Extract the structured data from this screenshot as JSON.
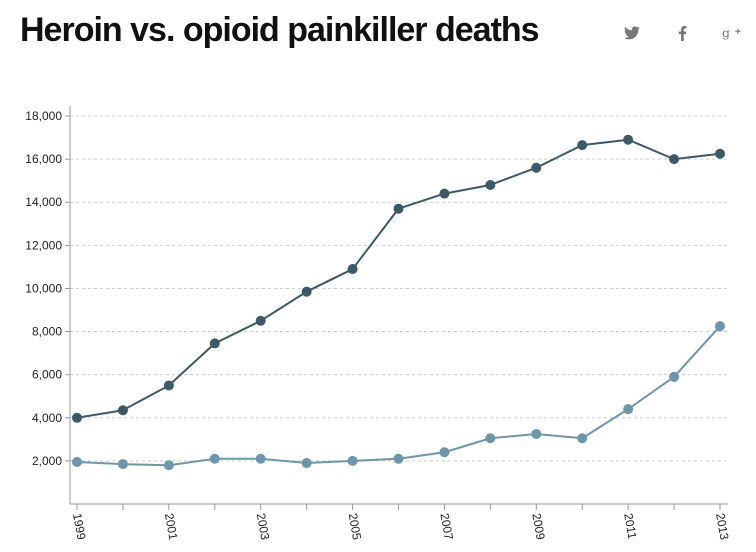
{
  "title": "Heroin vs. opioid painkiller deaths",
  "share": {
    "twitter_icon": "twitter-icon",
    "facebook_icon": "facebook-icon",
    "googleplus_icon": "google-plus-icon"
  },
  "colors": {
    "painkiller": "#3d5866",
    "heroin": "#6e96a8",
    "grid": "#cccccc",
    "axis": "#999999",
    "icons": "#777777"
  },
  "chart_data": {
    "type": "line",
    "title": "Heroin vs. opioid painkiller deaths",
    "xlabel": "",
    "ylabel": "",
    "x": [
      1999,
      2000,
      2001,
      2002,
      2003,
      2004,
      2005,
      2006,
      2007,
      2008,
      2009,
      2010,
      2011,
      2012,
      2013
    ],
    "x_tick_labels": [
      "1999",
      "2001",
      "2003",
      "2005",
      "2007",
      "2009",
      "2011",
      "2013"
    ],
    "y_tick_labels": [
      "2,000",
      "4,000",
      "6,000",
      "8,000",
      "10,000",
      "12,000",
      "14,000",
      "16,000",
      "18,000"
    ],
    "ylim": [
      0,
      18000
    ],
    "grid": true,
    "series": [
      {
        "values": [
          4000,
          4350,
          5500,
          7450,
          8500,
          9850,
          10900,
          13700,
          14400,
          14800,
          15600,
          16650,
          16900,
          16000,
          16250
        ]
      },
      {
        "values": [
          1950,
          1850,
          1800,
          2100,
          2100,
          1900,
          2000,
          2100,
          2400,
          3050,
          3250,
          3050,
          4400,
          5900,
          8250
        ]
      }
    ]
  }
}
